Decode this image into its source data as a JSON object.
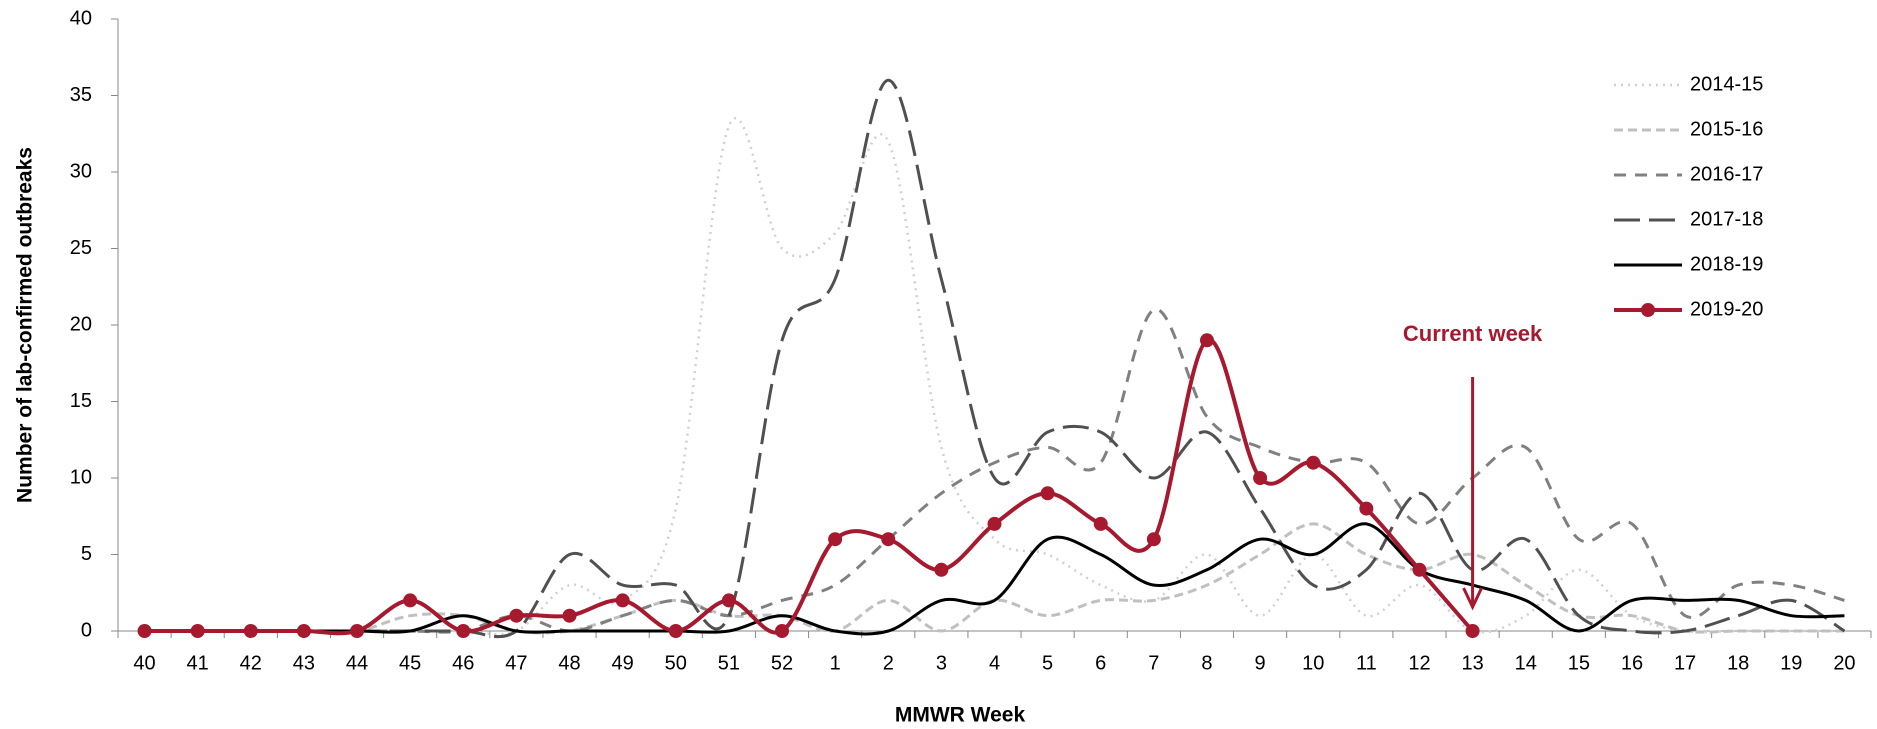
{
  "chart_data": {
    "type": "line",
    "x_label": "MMWR Week",
    "y_label": "Number of lab-confirmed outbreaks",
    "annotation": "Current week",
    "annotation_category_index": 25,
    "categories": [
      "40",
      "41",
      "42",
      "43",
      "44",
      "45",
      "46",
      "47",
      "48",
      "49",
      "50",
      "51",
      "52",
      "1",
      "2",
      "3",
      "4",
      "5",
      "6",
      "7",
      "8",
      "9",
      "10",
      "11",
      "12",
      "13",
      "14",
      "15",
      "16",
      "17",
      "18",
      "19",
      "20"
    ],
    "ylim": [
      0,
      40
    ],
    "yticks": [
      0,
      5,
      10,
      15,
      20,
      25,
      30,
      35,
      40
    ],
    "legend": "upper right",
    "series": [
      {
        "name": "2014-15",
        "color": "#d0d0d0",
        "values": [
          0,
          0,
          0,
          0,
          0,
          0,
          0,
          0,
          3,
          2,
          8,
          33,
          25,
          26,
          32,
          12,
          6,
          5,
          3,
          2,
          5,
          1,
          5,
          1,
          3,
          0,
          1,
          4,
          1,
          0,
          0,
          0,
          0
        ]
      },
      {
        "name": "2015-16",
        "color": "#c0c0c0",
        "values": [
          0,
          0,
          0,
          0,
          0,
          1,
          1,
          0,
          0,
          1,
          2,
          1,
          1,
          0,
          2,
          0,
          2,
          1,
          2,
          2,
          3,
          5,
          7,
          5,
          4,
          5,
          3,
          1,
          1,
          0,
          0,
          0,
          0
        ]
      },
      {
        "name": "2016-17",
        "color": "#808080",
        "values": [
          0,
          0,
          0,
          0,
          0,
          0,
          0,
          1,
          0,
          1,
          2,
          1,
          2,
          3,
          6,
          9,
          11,
          12,
          11,
          21,
          14,
          12,
          11,
          11,
          7,
          10,
          12,
          6,
          7,
          1,
          3,
          3,
          2
        ]
      },
      {
        "name": "2017-18",
        "color": "#505050",
        "values": [
          0,
          0,
          0,
          0,
          0,
          0,
          0,
          0,
          5,
          3,
          3,
          1,
          19,
          23,
          36,
          23,
          10,
          13,
          13,
          10,
          13,
          8,
          3,
          4,
          9,
          4,
          6,
          1,
          0,
          0,
          1,
          2,
          0
        ]
      },
      {
        "name": "2018-19",
        "color": "#000000",
        "values": [
          0,
          0,
          0,
          0,
          0,
          0,
          1,
          0,
          0,
          0,
          0,
          0,
          1,
          0,
          0,
          2,
          2,
          6,
          5,
          3,
          4,
          6,
          5,
          7,
          4,
          3,
          2,
          0,
          2,
          2,
          2,
          1,
          1
        ]
      },
      {
        "name": "2019-20",
        "color": "#a6192e",
        "values": [
          0,
          0,
          0,
          0,
          0,
          2,
          0,
          1,
          1,
          2,
          0,
          2,
          0,
          6,
          6,
          4,
          7,
          9,
          7,
          6,
          19,
          10,
          11,
          8,
          4,
          0,
          null,
          null,
          null,
          null,
          null,
          null,
          null
        ]
      }
    ]
  }
}
